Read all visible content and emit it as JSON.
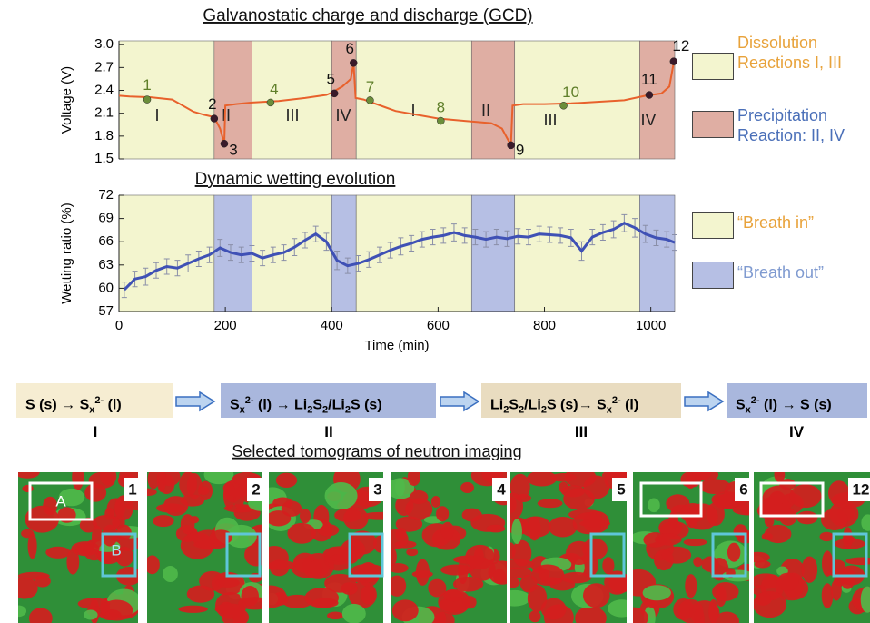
{
  "chart_data": [
    {
      "type": "line",
      "title": "Galvanostatic charge and discharge (GCD)",
      "y_label": "Voltage (V)",
      "xlim": [
        0,
        1045
      ],
      "ylim": [
        1.5,
        3.05
      ],
      "yticks": [
        1.5,
        1.8,
        2.1,
        2.4,
        2.7,
        {
          "value": 3,
          "label": "3.0"
        }
      ],
      "regions": [
        {
          "start": 0,
          "end": 179,
          "color": "#f3f5cf"
        },
        {
          "start": 179,
          "end": 250,
          "color": "#dfaea3"
        },
        {
          "start": 250,
          "end": 400,
          "color": "#f3f5cf"
        },
        {
          "start": 400,
          "end": 446,
          "color": "#dfaea3"
        },
        {
          "start": 446,
          "end": 663,
          "color": "#f3f5cf"
        },
        {
          "start": 663,
          "end": 744,
          "color": "#dfaea3"
        },
        {
          "start": 744,
          "end": 979,
          "color": "#f3f5cf"
        },
        {
          "start": 979,
          "end": 1045,
          "color": "#dfaea3"
        }
      ],
      "region_labels": [
        "I",
        "II",
        "III",
        "IV",
        "I",
        "II",
        "III",
        "IV"
      ],
      "series": [
        {
          "color": "#e8612c",
          "x": [
            0,
            20,
            60,
            100,
            140,
            160,
            179,
            190,
            198,
            200,
            220,
            250,
            300,
            350,
            390,
            400,
            420,
            436,
            441,
            445,
            460,
            500,
            520,
            560,
            600,
            650,
            700,
            720,
            737,
            740,
            760,
            800,
            850,
            900,
            950,
            990,
            1020,
            1035,
            1043
          ],
          "values": [
            2.33,
            2.32,
            2.31,
            2.28,
            2.12,
            2.08,
            2.05,
            1.9,
            1.7,
            2.2,
            2.22,
            2.24,
            2.26,
            2.3,
            2.34,
            2.37,
            2.45,
            2.55,
            2.76,
            2.3,
            2.28,
            2.18,
            2.13,
            2.08,
            2.03,
            2.0,
            1.97,
            1.9,
            1.68,
            2.2,
            2.22,
            2.22,
            2.23,
            2.25,
            2.27,
            2.33,
            2.36,
            2.45,
            2.76
          ]
        }
      ],
      "points": {
        "labels": [
          "1",
          "2",
          "3",
          "4",
          "5",
          "6",
          "7",
          "8",
          "9",
          "10",
          "11",
          "12"
        ],
        "x": [
          53,
          179,
          198,
          285,
          405,
          441,
          472,
          605,
          737,
          836,
          997,
          1043
        ],
        "values": [
          2.28,
          2.03,
          1.7,
          2.24,
          2.36,
          2.76,
          2.27,
          2.0,
          1.68,
          2.2,
          2.34,
          2.78
        ],
        "colors": [
          "#6b8e3a",
          "#3a1a2a",
          "#3a1a2a",
          "#6b8e3a",
          "#3a1a2a",
          "#3a1a2a",
          "#6b8e3a",
          "#6b8e3a",
          "#3a1a2a",
          "#6b8e3a",
          "#3a1a2a",
          "#3a1a2a"
        ]
      },
      "legend": [
        {
          "name": "Dissolution Reactions I, III",
          "color": "#f3f5cf",
          "text_color": "#e8a23a"
        },
        {
          "name": "Precipitation Reaction: II, IV",
          "color": "#dfaea3",
          "text_color": "#4a6fb8"
        }
      ]
    },
    {
      "type": "line",
      "title": "Dynamic wetting evolution",
      "y_label": "Wetting ratio (%)",
      "x_label": "Time (min)",
      "xlim": [
        0,
        1045
      ],
      "ylim": [
        57,
        72
      ],
      "yticks": [
        57,
        60,
        63,
        66,
        69,
        72
      ],
      "xticks": [
        0,
        200,
        400,
        600,
        800,
        1000
      ],
      "regions": [
        {
          "start": 0,
          "end": 179,
          "color": "#f3f5cf"
        },
        {
          "start": 179,
          "end": 250,
          "color": "#b6bfe4"
        },
        {
          "start": 250,
          "end": 400,
          "color": "#f3f5cf"
        },
        {
          "start": 400,
          "end": 446,
          "color": "#b6bfe4"
        },
        {
          "start": 446,
          "end": 663,
          "color": "#f3f5cf"
        },
        {
          "start": 663,
          "end": 744,
          "color": "#b6bfe4"
        },
        {
          "start": 744,
          "end": 979,
          "color": "#f3f5cf"
        },
        {
          "start": 979,
          "end": 1045,
          "color": "#b6bfe4"
        }
      ],
      "series": [
        {
          "color": "#3f51b5",
          "x": [
            10,
            30,
            50,
            70,
            90,
            110,
            130,
            150,
            170,
            190,
            210,
            230,
            250,
            270,
            290,
            310,
            330,
            350,
            370,
            390,
            410,
            430,
            450,
            470,
            490,
            510,
            530,
            550,
            570,
            590,
            610,
            630,
            650,
            670,
            690,
            710,
            730,
            750,
            770,
            790,
            810,
            830,
            850,
            870,
            890,
            910,
            930,
            950,
            970,
            990,
            1010,
            1030,
            1045
          ],
          "values": [
            59.8,
            61.2,
            61.5,
            62.3,
            62.8,
            62.6,
            63.2,
            63.8,
            64.3,
            65.2,
            64.6,
            64.3,
            64.5,
            63.9,
            64.3,
            64.6,
            65.3,
            66.2,
            67.0,
            66.0,
            63.6,
            62.9,
            63.2,
            63.7,
            64.3,
            64.9,
            65.4,
            65.8,
            66.3,
            66.6,
            66.8,
            67.2,
            66.8,
            66.6,
            66.3,
            66.6,
            66.4,
            66.7,
            66.6,
            67.0,
            66.9,
            66.8,
            66.5,
            64.8,
            66.6,
            67.2,
            67.6,
            68.4,
            67.8,
            67.0,
            66.5,
            66.3,
            65.9
          ],
          "errors": [
            1.0,
            1.0,
            1.1,
            1.0,
            1.0,
            1.0,
            1.1,
            1.0,
            1.0,
            1.1,
            1.0,
            1.0,
            1.0,
            1.0,
            1.0,
            1.0,
            1.1,
            1.0,
            1.0,
            1.1,
            1.2,
            1.0,
            1.0,
            1.0,
            1.0,
            1.0,
            1.1,
            1.0,
            1.0,
            1.0,
            1.0,
            1.1,
            1.0,
            1.0,
            1.0,
            1.0,
            1.0,
            1.0,
            1.0,
            1.0,
            1.0,
            1.0,
            1.1,
            1.2,
            1.0,
            1.0,
            1.1,
            1.1,
            1.2,
            1.1,
            1.0,
            1.0,
            1.0
          ]
        }
      ],
      "legend": [
        {
          "name": "“Breath in”",
          "color": "#f3f5cf",
          "text_color": "#e8a23a"
        },
        {
          "name": "“Breath out”",
          "color": "#b6bfe4",
          "text_color": "#7f9ad0"
        }
      ]
    }
  ],
  "scheme": {
    "steps": [
      {
        "color": "#f6edd2",
        "label": "I",
        "parts": [
          {
            "t": "S (s) → S"
          },
          {
            "sub": "x"
          },
          {
            "sup": "2-"
          },
          {
            "t": " (l)"
          }
        ]
      },
      {
        "color": "#a9b7dd",
        "label": "II",
        "parts": [
          {
            "t": "S"
          },
          {
            "sub": "x"
          },
          {
            "sup": "2-"
          },
          {
            "t": " (l) → Li"
          },
          {
            "sub": "2"
          },
          {
            "t": "S"
          },
          {
            "sub": "2"
          },
          {
            "t": "/Li"
          },
          {
            "sub": "2"
          },
          {
            "t": "S (s)"
          }
        ]
      },
      {
        "color": "#e9dcc0",
        "label": "III",
        "parts": [
          {
            "t": "Li"
          },
          {
            "sub": "2"
          },
          {
            "t": "S"
          },
          {
            "sub": "2"
          },
          {
            "t": "/Li"
          },
          {
            "sub": "2"
          },
          {
            "t": "S (s)→ S"
          },
          {
            "sub": "x"
          },
          {
            "sup": "2-"
          },
          {
            "t": " (l)"
          }
        ]
      },
      {
        "color": "#a9b7dd",
        "label": "IV",
        "parts": [
          {
            "t": "S"
          },
          {
            "sub": "x"
          },
          {
            "sup": "2-"
          },
          {
            "t": " (l) → S (s)"
          }
        ]
      }
    ]
  },
  "tomograms": {
    "title": "Selected tomograms of neutron imaging",
    "labels": [
      "1",
      "2",
      "3",
      "4",
      "5",
      "6",
      "12"
    ],
    "box_labels": [
      "A",
      "B"
    ]
  }
}
